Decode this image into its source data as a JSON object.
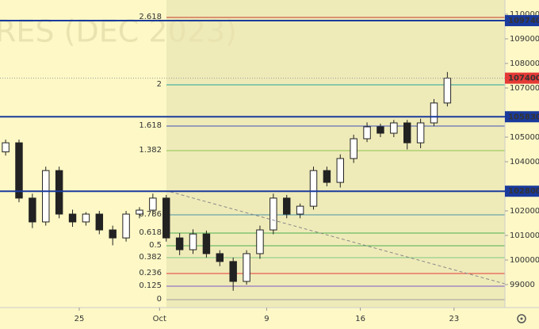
{
  "chart_data": {
    "type": "candlestick",
    "title": "RES (DEC 2023)",
    "x": [
      19.5,
      20.5,
      21.5,
      22.5,
      23.5,
      24.5,
      25.5,
      26.5,
      27.5,
      28.5,
      29.5,
      30.5,
      31.5,
      32.5,
      33.5,
      34.5,
      35.5,
      36.5,
      37.5,
      38.5,
      39.5,
      40.5,
      41.5,
      42.5,
      43.5,
      44.5,
      45.5,
      46.5,
      47.5,
      48.5,
      49.5,
      50.5,
      51.5,
      52.5
    ],
    "open": [
      104400,
      104770,
      102520,
      101550,
      103640,
      101870,
      101550,
      101870,
      101225,
      100900,
      101870,
      102030,
      102520,
      100900,
      100420,
      101060,
      100260,
      99940,
      99130,
      100260,
      101225,
      102520,
      101870,
      102190,
      103640,
      103160,
      104130,
      104935,
      105420,
      105160,
      105580,
      104770,
      105580,
      106390
    ],
    "high": [
      104900,
      104900,
      102700,
      103800,
      103800,
      102050,
      101950,
      102000,
      101400,
      102000,
      102150,
      102700,
      102650,
      101100,
      101250,
      101200,
      100400,
      100100,
      100400,
      101400,
      102700,
      102650,
      102300,
      103800,
      103800,
      104300,
      105100,
      105600,
      105550,
      105700,
      105700,
      105750,
      106550,
      107650
    ],
    "low": [
      104250,
      102350,
      101300,
      101400,
      101700,
      101350,
      101400,
      101050,
      100600,
      100750,
      101700,
      101850,
      100750,
      100200,
      100250,
      100100,
      99750,
      98750,
      99000,
      100050,
      101050,
      101700,
      101700,
      102050,
      103000,
      102950,
      103950,
      104800,
      105000,
      105000,
      104500,
      104550,
      105450,
      106250
    ],
    "close": [
      104770,
      102520,
      101550,
      103640,
      101870,
      101550,
      101870,
      101225,
      100900,
      101870,
      102030,
      102520,
      100900,
      100420,
      101060,
      100260,
      99940,
      99130,
      100260,
      101225,
      102520,
      101870,
      102190,
      103640,
      103160,
      104130,
      104935,
      105420,
      105160,
      105580,
      104770,
      105580,
      106390,
      107400
    ],
    "xlim": [
      19.08,
      56.8
    ],
    "ylim": [
      98065,
      110580
    ],
    "xticks": [
      {
        "value": 25,
        "label": "25"
      },
      {
        "value": 31,
        "label": "Oct"
      },
      {
        "value": 39,
        "label": "9"
      },
      {
        "value": 46,
        "label": "16"
      },
      {
        "value": 53,
        "label": "23"
      }
    ],
    "yticks": [
      110000,
      109000,
      108000,
      107000,
      105000,
      104000,
      102000,
      101000,
      100000,
      99000
    ],
    "fib_levels": [
      {
        "label": "2.618",
        "value": 109870,
        "color": "#c0392b"
      },
      {
        "label": "2",
        "value": 107129,
        "color": "#26a69a"
      },
      {
        "label": "1.618",
        "value": 105451,
        "color": "#3f51b5"
      },
      {
        "label": "1.382",
        "value": 104451,
        "color": "#8bc34a"
      },
      {
        "label": "0.786",
        "value": 101838,
        "color": "#4a90a4"
      },
      {
        "label": "0.618",
        "value": 101096,
        "color": "#4caf50"
      },
      {
        "label": "0.5",
        "value": 100580,
        "color": "#4caf50"
      },
      {
        "label": "0.382",
        "value": 100096,
        "color": "#81c784"
      },
      {
        "label": "0.236",
        "value": 99451,
        "color": "#e53935"
      },
      {
        "label": "0.125",
        "value": 98935,
        "color": "#7e57c2"
      },
      {
        "label": "0",
        "value": 98387,
        "color": "#9e9e9e"
      }
    ],
    "horizontal_lines": [
      109740,
      105830,
      102800
    ],
    "line_color": "#1a3a9c",
    "last_price": 107400,
    "last_price_color": "#e53935"
  }
}
